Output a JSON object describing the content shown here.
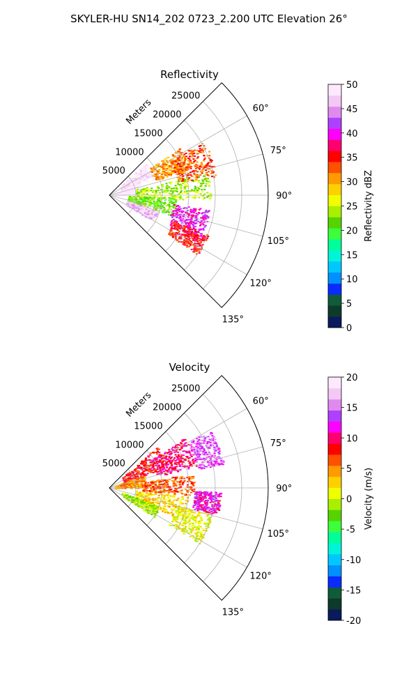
{
  "figure": {
    "suptitle": "SKYLER-HU  SN14_202  0723_2.200 UTC Elevation 26°"
  },
  "chart_data": [
    {
      "type": "heatmap",
      "projection": "polar-sector",
      "title": "Reflectivity",
      "range_label": "Meters",
      "range_ticks": [
        "5000",
        "10000",
        "15000",
        "20000",
        "25000"
      ],
      "range_values": [
        5000,
        10000,
        15000,
        20000,
        25000
      ],
      "rmax": 30000,
      "angle_ticks": [
        "60°",
        "75°",
        "90°",
        "105°",
        "120°",
        "135°"
      ],
      "angle_values": [
        60,
        75,
        90,
        105,
        120,
        135
      ],
      "theta_range": [
        45,
        135
      ],
      "grid": true,
      "colorbar": {
        "label": "Reflectivity dBZ",
        "vmin": 0,
        "vmax": 50,
        "ticks": [
          "0",
          "5",
          "10",
          "15",
          "20",
          "25",
          "30",
          "35",
          "40",
          "45",
          "50"
        ],
        "tick_values": [
          0,
          5,
          10,
          15,
          20,
          25,
          30,
          35,
          40,
          45,
          50
        ],
        "colors": [
          "#0a1a5c",
          "#0e3a2a",
          "#0f5b3a",
          "#0a2bff",
          "#0090ff",
          "#00c8ff",
          "#00f5d8",
          "#00ff9a",
          "#3cff3c",
          "#55d400",
          "#a8f000",
          "#f0ff00",
          "#ffd000",
          "#ff9a00",
          "#ff5000",
          "#ff0000",
          "#ff0070",
          "#ff00ff",
          "#b040ff",
          "#e08af0",
          "#f4c8f4",
          "#fde8fd"
        ]
      },
      "echo_regions": [
        {
          "t1": 49,
          "t2": 66,
          "r1": 2500,
          "r2": 9000,
          "level": 21
        },
        {
          "t1": 56,
          "t2": 72,
          "r1": 9000,
          "r2": 16000,
          "level": 13
        },
        {
          "t1": 60,
          "t2": 80,
          "r1": 13000,
          "r2": 20500,
          "level": 14
        },
        {
          "t1": 68,
          "t2": 88,
          "r1": 1000,
          "r2": 6000,
          "level": 22
        },
        {
          "t1": 77,
          "t2": 93,
          "r1": 5000,
          "r2": 19000,
          "level": 10
        },
        {
          "t1": 92,
          "t2": 108,
          "r1": 3500,
          "r2": 12500,
          "level": 9
        },
        {
          "t1": 98,
          "t2": 116,
          "r1": 12000,
          "r2": 19000,
          "level": 17
        },
        {
          "t1": 108,
          "t2": 121,
          "r1": 3500,
          "r2": 9500,
          "level": 20
        },
        {
          "t1": 112,
          "t2": 124,
          "r1": 13000,
          "r2": 20000,
          "level": 15
        }
      ]
    },
    {
      "type": "heatmap",
      "projection": "polar-sector",
      "title": "Velocity",
      "range_label": "Meters",
      "range_ticks": [
        "5000",
        "10000",
        "15000",
        "20000",
        "25000"
      ],
      "range_values": [
        5000,
        10000,
        15000,
        20000,
        25000
      ],
      "rmax": 30000,
      "angle_ticks": [
        "60°",
        "75°",
        "90°",
        "105°",
        "120°",
        "135°"
      ],
      "angle_values": [
        60,
        75,
        90,
        105,
        120,
        135
      ],
      "theta_range": [
        45,
        135
      ],
      "grid": true,
      "colorbar": {
        "label": "Velocity (m/s)",
        "vmin": -20,
        "vmax": 20,
        "ticks": [
          "-20",
          "-15",
          "-10",
          "-5",
          "0",
          "5",
          "10",
          "15",
          "20"
        ],
        "tick_values": [
          -20,
          -15,
          -10,
          -5,
          0,
          5,
          10,
          15,
          20
        ],
        "colors": [
          "#0a1a5c",
          "#0e3a2a",
          "#0f5b3a",
          "#0a2bff",
          "#0090ff",
          "#00c8ff",
          "#00f5d8",
          "#00ff9a",
          "#3cff3c",
          "#55d400",
          "#a8f000",
          "#f0ff00",
          "#ffd000",
          "#ff9a00",
          "#ff5000",
          "#ff0000",
          "#ff0070",
          "#ff00ff",
          "#b040ff",
          "#e08af0",
          "#f4c8f4",
          "#fde8fd"
        ]
      },
      "echo_regions": [
        {
          "t1": 49,
          "t2": 70,
          "r1": 3000,
          "r2": 12000,
          "level": 15
        },
        {
          "t1": 56,
          "t2": 76,
          "r1": 9000,
          "r2": 17000,
          "level": 16
        },
        {
          "t1": 60,
          "t2": 78,
          "r1": 17000,
          "r2": 22000,
          "level": 18
        },
        {
          "t1": 68,
          "t2": 90,
          "r1": 1000,
          "r2": 7000,
          "level": 13
        },
        {
          "t1": 80,
          "t2": 95,
          "r1": 6000,
          "r2": 16000,
          "level": 14
        },
        {
          "t1": 92,
          "t2": 104,
          "r1": 16000,
          "r2": 21000,
          "level": 17
        },
        {
          "t1": 96,
          "t2": 114,
          "r1": 5000,
          "r2": 15000,
          "level": 12
        },
        {
          "t1": 104,
          "t2": 122,
          "r1": 13000,
          "r2": 20000,
          "level": 11
        },
        {
          "t1": 110,
          "t2": 123,
          "r1": 2500,
          "r2": 10000,
          "level": 10
        }
      ]
    }
  ]
}
